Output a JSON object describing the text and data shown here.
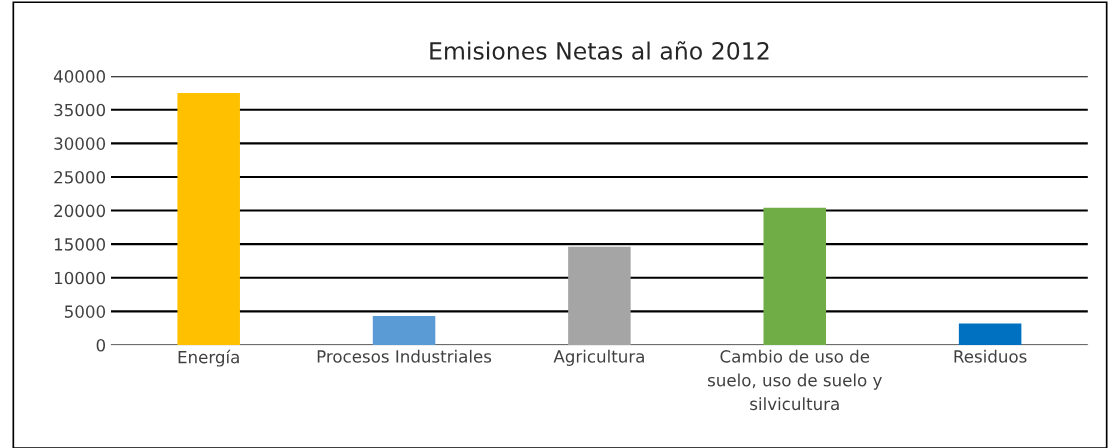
{
  "chart_data": {
    "type": "bar",
    "title": "Emisiones Netas al año 2012",
    "categories": [
      "Energía",
      "Procesos Industriales",
      "Agricultura",
      "Cambio de uso de suelo, uso de suelo y silvicultura",
      "Residuos"
    ],
    "values": [
      37500,
      4300,
      14600,
      20400,
      3200
    ],
    "colors": [
      "#ffc000",
      "#5b9bd5",
      "#a5a5a5",
      "#70ad47",
      "#0070c0"
    ],
    "ylim": [
      0,
      40000
    ],
    "yticks": [
      0,
      5000,
      10000,
      15000,
      20000,
      25000,
      30000,
      35000,
      40000
    ],
    "grid": "y"
  }
}
